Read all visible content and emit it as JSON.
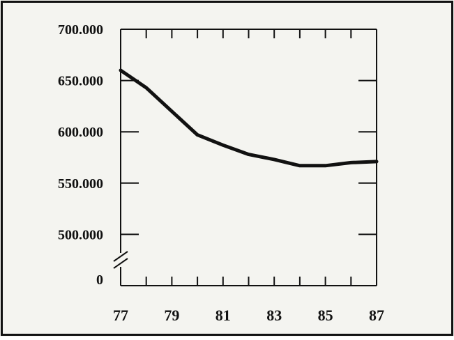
{
  "colors": {
    "background": "#f4f4f0",
    "ink": "#111111"
  },
  "chart_data": {
    "type": "line",
    "title": "",
    "xlabel": "",
    "ylabel": "",
    "x_ticks": [
      "77",
      "79",
      "81",
      "83",
      "85",
      "87"
    ],
    "y_ticks": [
      "700.000",
      "650.000",
      "600.000",
      "550.000",
      "500.000"
    ],
    "y_zero_label": "0",
    "y_axis_break": true,
    "xlim": [
      77,
      87
    ],
    "ylim": [
      450000,
      700000
    ],
    "grid": false,
    "legend": "none",
    "series": [
      {
        "x": [
          77,
          78,
          79,
          80,
          81,
          82,
          83,
          84,
          85,
          86,
          87
        ],
        "y": [
          660000,
          643000,
          620000,
          597000,
          587000,
          578000,
          573000,
          567000,
          567000,
          570000,
          571000
        ]
      }
    ]
  }
}
